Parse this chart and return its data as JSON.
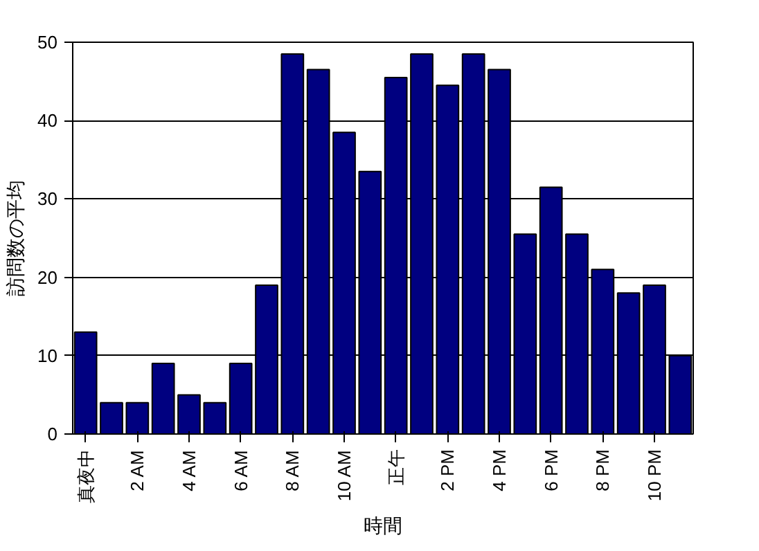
{
  "chart_data": {
    "type": "bar",
    "xlabel": "時間",
    "ylabel": "訪問数の平均",
    "categories": [
      "真夜中",
      null,
      "2 AM",
      null,
      "4 AM",
      null,
      "6 AM",
      null,
      "8 AM",
      null,
      "10 AM",
      null,
      "正午",
      null,
      "2 PM",
      null,
      "4 PM",
      null,
      "6 PM",
      null,
      "8 PM",
      null,
      "10 PM",
      null
    ],
    "values": [
      13,
      4,
      4,
      9,
      5,
      4,
      9,
      19,
      48.5,
      46.5,
      38.5,
      33.5,
      45.5,
      48.5,
      44.5,
      48.5,
      46.5,
      25.5,
      31.5,
      25.5,
      21,
      18,
      19,
      10
    ],
    "color": "#000080",
    "ylim": [
      0,
      50
    ],
    "yticks": [
      0,
      10,
      20,
      30,
      40,
      50
    ],
    "grid": "y"
  }
}
